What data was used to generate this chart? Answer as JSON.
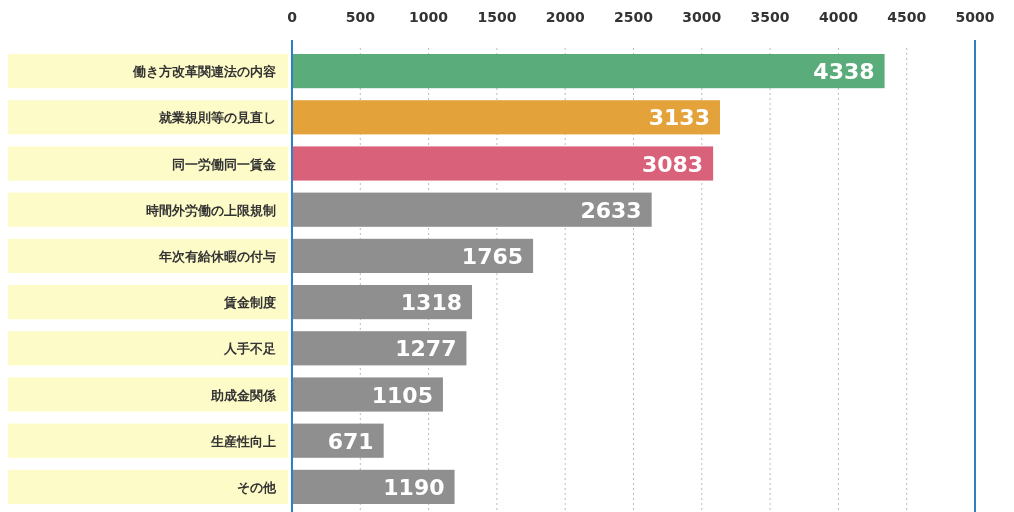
{
  "chart_data": {
    "type": "bar",
    "orientation": "horizontal",
    "categories": [
      "働き方改革関連法の内容",
      "就業規則等の見直し",
      "同一労働同一賃金",
      "時間外労働の上限規制",
      "年次有給休暇の付与",
      "賃金制度",
      "人手不足",
      "助成金関係",
      "生産性向上",
      "その他"
    ],
    "values": [
      4338,
      3133,
      3083,
      2633,
      1765,
      1318,
      1277,
      1105,
      671,
      1190
    ],
    "colors": [
      "#5aad7b",
      "#e3a23a",
      "#d9627a",
      "#8f8f8f",
      "#8f8f8f",
      "#8f8f8f",
      "#8f8f8f",
      "#8f8f8f",
      "#8f8f8f",
      "#8f8f8f"
    ],
    "xlim": [
      0,
      5000
    ],
    "xticks": [
      0,
      500,
      1000,
      1500,
      2000,
      2500,
      3000,
      3500,
      4000,
      4500,
      5000
    ],
    "grid": "x",
    "data_labels": true
  }
}
